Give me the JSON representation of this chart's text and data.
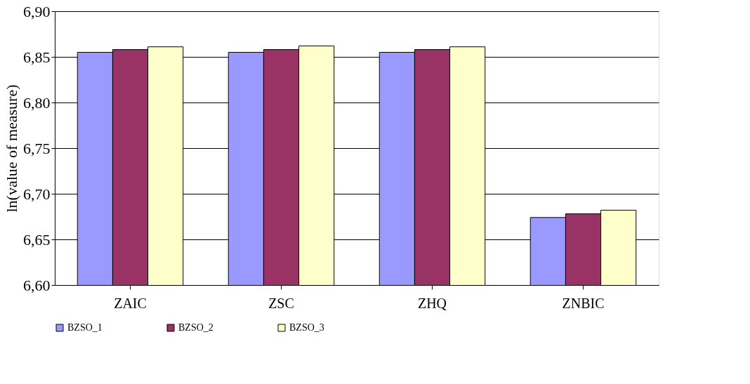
{
  "chart_data": {
    "type": "bar",
    "ylabel": "ln(value of measure)",
    "categories": [
      "ZAIC",
      "ZSC",
      "ZHQ",
      "ZNBIC"
    ],
    "series": [
      {
        "name": "BZSO_1",
        "color": "#9999ff",
        "values": [
          6.855,
          6.855,
          6.855,
          6.674
        ]
      },
      {
        "name": "BZSO_2",
        "color": "#993366",
        "values": [
          6.858,
          6.858,
          6.858,
          6.678
        ]
      },
      {
        "name": "BZSO_3",
        "color": "#ffffcc",
        "values": [
          6.861,
          6.862,
          6.861,
          6.682
        ]
      }
    ],
    "ylim": [
      6.6,
      6.9
    ],
    "yticks": [
      {
        "value": 6.6,
        "label": "6,60"
      },
      {
        "value": 6.65,
        "label": "6,65"
      },
      {
        "value": 6.7,
        "label": "6,70"
      },
      {
        "value": 6.75,
        "label": "6,75"
      },
      {
        "value": 6.8,
        "label": "6,80"
      },
      {
        "value": 6.85,
        "label": "6,85"
      },
      {
        "value": 6.9,
        "label": "6,90"
      }
    ],
    "grid": "y",
    "legend": "bottom"
  }
}
